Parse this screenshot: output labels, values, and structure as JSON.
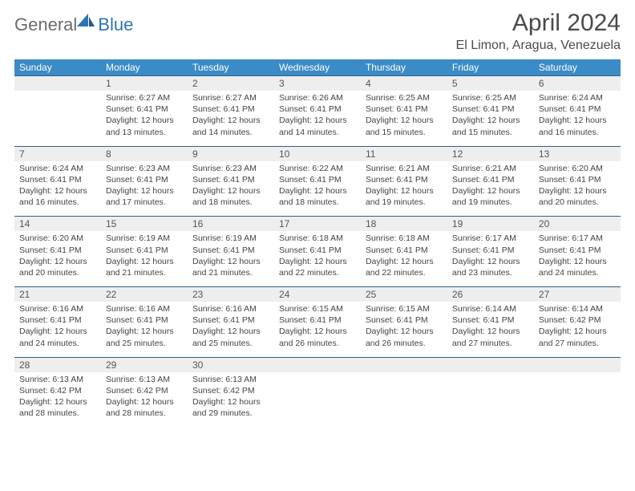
{
  "brand": {
    "part1": "General",
    "part2": "Blue"
  },
  "title": "April 2024",
  "location": "El Limon, Aragua, Venezuela",
  "colors": {
    "header_bg": "#3b8bc6",
    "header_text": "#ffffff",
    "num_bg": "#eeeeee",
    "border": "#2e5f8a",
    "text": "#444444",
    "brand_gray": "#6b6b6b",
    "brand_blue": "#2e75b6"
  },
  "dow": [
    "Sunday",
    "Monday",
    "Tuesday",
    "Wednesday",
    "Thursday",
    "Friday",
    "Saturday"
  ],
  "weeks": [
    {
      "nums": [
        "",
        "1",
        "2",
        "3",
        "4",
        "5",
        "6"
      ],
      "details": [
        "",
        "Sunrise: 6:27 AM\nSunset: 6:41 PM\nDaylight: 12 hours and 13 minutes.",
        "Sunrise: 6:27 AM\nSunset: 6:41 PM\nDaylight: 12 hours and 14 minutes.",
        "Sunrise: 6:26 AM\nSunset: 6:41 PM\nDaylight: 12 hours and 14 minutes.",
        "Sunrise: 6:25 AM\nSunset: 6:41 PM\nDaylight: 12 hours and 15 minutes.",
        "Sunrise: 6:25 AM\nSunset: 6:41 PM\nDaylight: 12 hours and 15 minutes.",
        "Sunrise: 6:24 AM\nSunset: 6:41 PM\nDaylight: 12 hours and 16 minutes."
      ]
    },
    {
      "nums": [
        "7",
        "8",
        "9",
        "10",
        "11",
        "12",
        "13"
      ],
      "details": [
        "Sunrise: 6:24 AM\nSunset: 6:41 PM\nDaylight: 12 hours and 16 minutes.",
        "Sunrise: 6:23 AM\nSunset: 6:41 PM\nDaylight: 12 hours and 17 minutes.",
        "Sunrise: 6:23 AM\nSunset: 6:41 PM\nDaylight: 12 hours and 18 minutes.",
        "Sunrise: 6:22 AM\nSunset: 6:41 PM\nDaylight: 12 hours and 18 minutes.",
        "Sunrise: 6:21 AM\nSunset: 6:41 PM\nDaylight: 12 hours and 19 minutes.",
        "Sunrise: 6:21 AM\nSunset: 6:41 PM\nDaylight: 12 hours and 19 minutes.",
        "Sunrise: 6:20 AM\nSunset: 6:41 PM\nDaylight: 12 hours and 20 minutes."
      ]
    },
    {
      "nums": [
        "14",
        "15",
        "16",
        "17",
        "18",
        "19",
        "20"
      ],
      "details": [
        "Sunrise: 6:20 AM\nSunset: 6:41 PM\nDaylight: 12 hours and 20 minutes.",
        "Sunrise: 6:19 AM\nSunset: 6:41 PM\nDaylight: 12 hours and 21 minutes.",
        "Sunrise: 6:19 AM\nSunset: 6:41 PM\nDaylight: 12 hours and 21 minutes.",
        "Sunrise: 6:18 AM\nSunset: 6:41 PM\nDaylight: 12 hours and 22 minutes.",
        "Sunrise: 6:18 AM\nSunset: 6:41 PM\nDaylight: 12 hours and 22 minutes.",
        "Sunrise: 6:17 AM\nSunset: 6:41 PM\nDaylight: 12 hours and 23 minutes.",
        "Sunrise: 6:17 AM\nSunset: 6:41 PM\nDaylight: 12 hours and 24 minutes."
      ]
    },
    {
      "nums": [
        "21",
        "22",
        "23",
        "24",
        "25",
        "26",
        "27"
      ],
      "details": [
        "Sunrise: 6:16 AM\nSunset: 6:41 PM\nDaylight: 12 hours and 24 minutes.",
        "Sunrise: 6:16 AM\nSunset: 6:41 PM\nDaylight: 12 hours and 25 minutes.",
        "Sunrise: 6:16 AM\nSunset: 6:41 PM\nDaylight: 12 hours and 25 minutes.",
        "Sunrise: 6:15 AM\nSunset: 6:41 PM\nDaylight: 12 hours and 26 minutes.",
        "Sunrise: 6:15 AM\nSunset: 6:41 PM\nDaylight: 12 hours and 26 minutes.",
        "Sunrise: 6:14 AM\nSunset: 6:41 PM\nDaylight: 12 hours and 27 minutes.",
        "Sunrise: 6:14 AM\nSunset: 6:42 PM\nDaylight: 12 hours and 27 minutes."
      ]
    },
    {
      "nums": [
        "28",
        "29",
        "30",
        "",
        "",
        "",
        ""
      ],
      "details": [
        "Sunrise: 6:13 AM\nSunset: 6:42 PM\nDaylight: 12 hours and 28 minutes.",
        "Sunrise: 6:13 AM\nSunset: 6:42 PM\nDaylight: 12 hours and 28 minutes.",
        "Sunrise: 6:13 AM\nSunset: 6:42 PM\nDaylight: 12 hours and 29 minutes.",
        "",
        "",
        "",
        ""
      ]
    }
  ]
}
